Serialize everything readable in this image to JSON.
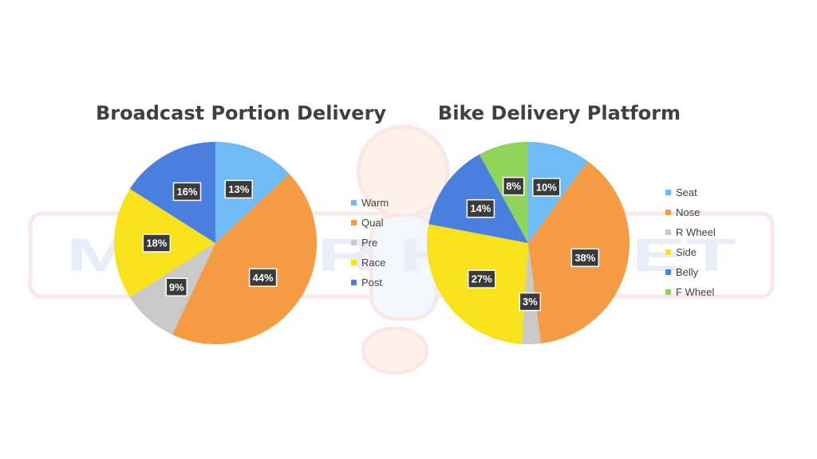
{
  "chart_data": [
    {
      "type": "pie",
      "title": "Broadcast Portion Delivery",
      "categories": [
        "Warm",
        "Qual",
        "Pre",
        "Race",
        "Post"
      ],
      "values": [
        13,
        44,
        9,
        18,
        16
      ],
      "value_labels": [
        "13%",
        "44%",
        "9%",
        "18%",
        "16%"
      ],
      "colors": [
        "#6EBBF5",
        "#F59B43",
        "#C9C9C9",
        "#F7E21C",
        "#4A7FE0"
      ],
      "legend_position": "right"
    },
    {
      "type": "pie",
      "title": "Bike Delivery Platform",
      "categories": [
        "Seat",
        "Nose",
        "R Wheel",
        "Side",
        "Belly",
        "F Wheel"
      ],
      "values": [
        10,
        38,
        3,
        27,
        14,
        8
      ],
      "value_labels": [
        "10%",
        "38%",
        "3%",
        "27%",
        "14%",
        "8%"
      ],
      "colors": [
        "#6EBBF5",
        "#F59B43",
        "#C9C9C9",
        "#F7E21C",
        "#4A7FE0",
        "#8FD45B"
      ],
      "legend_position": "right"
    }
  ],
  "watermark": {
    "text": "MISTER HELMET"
  }
}
